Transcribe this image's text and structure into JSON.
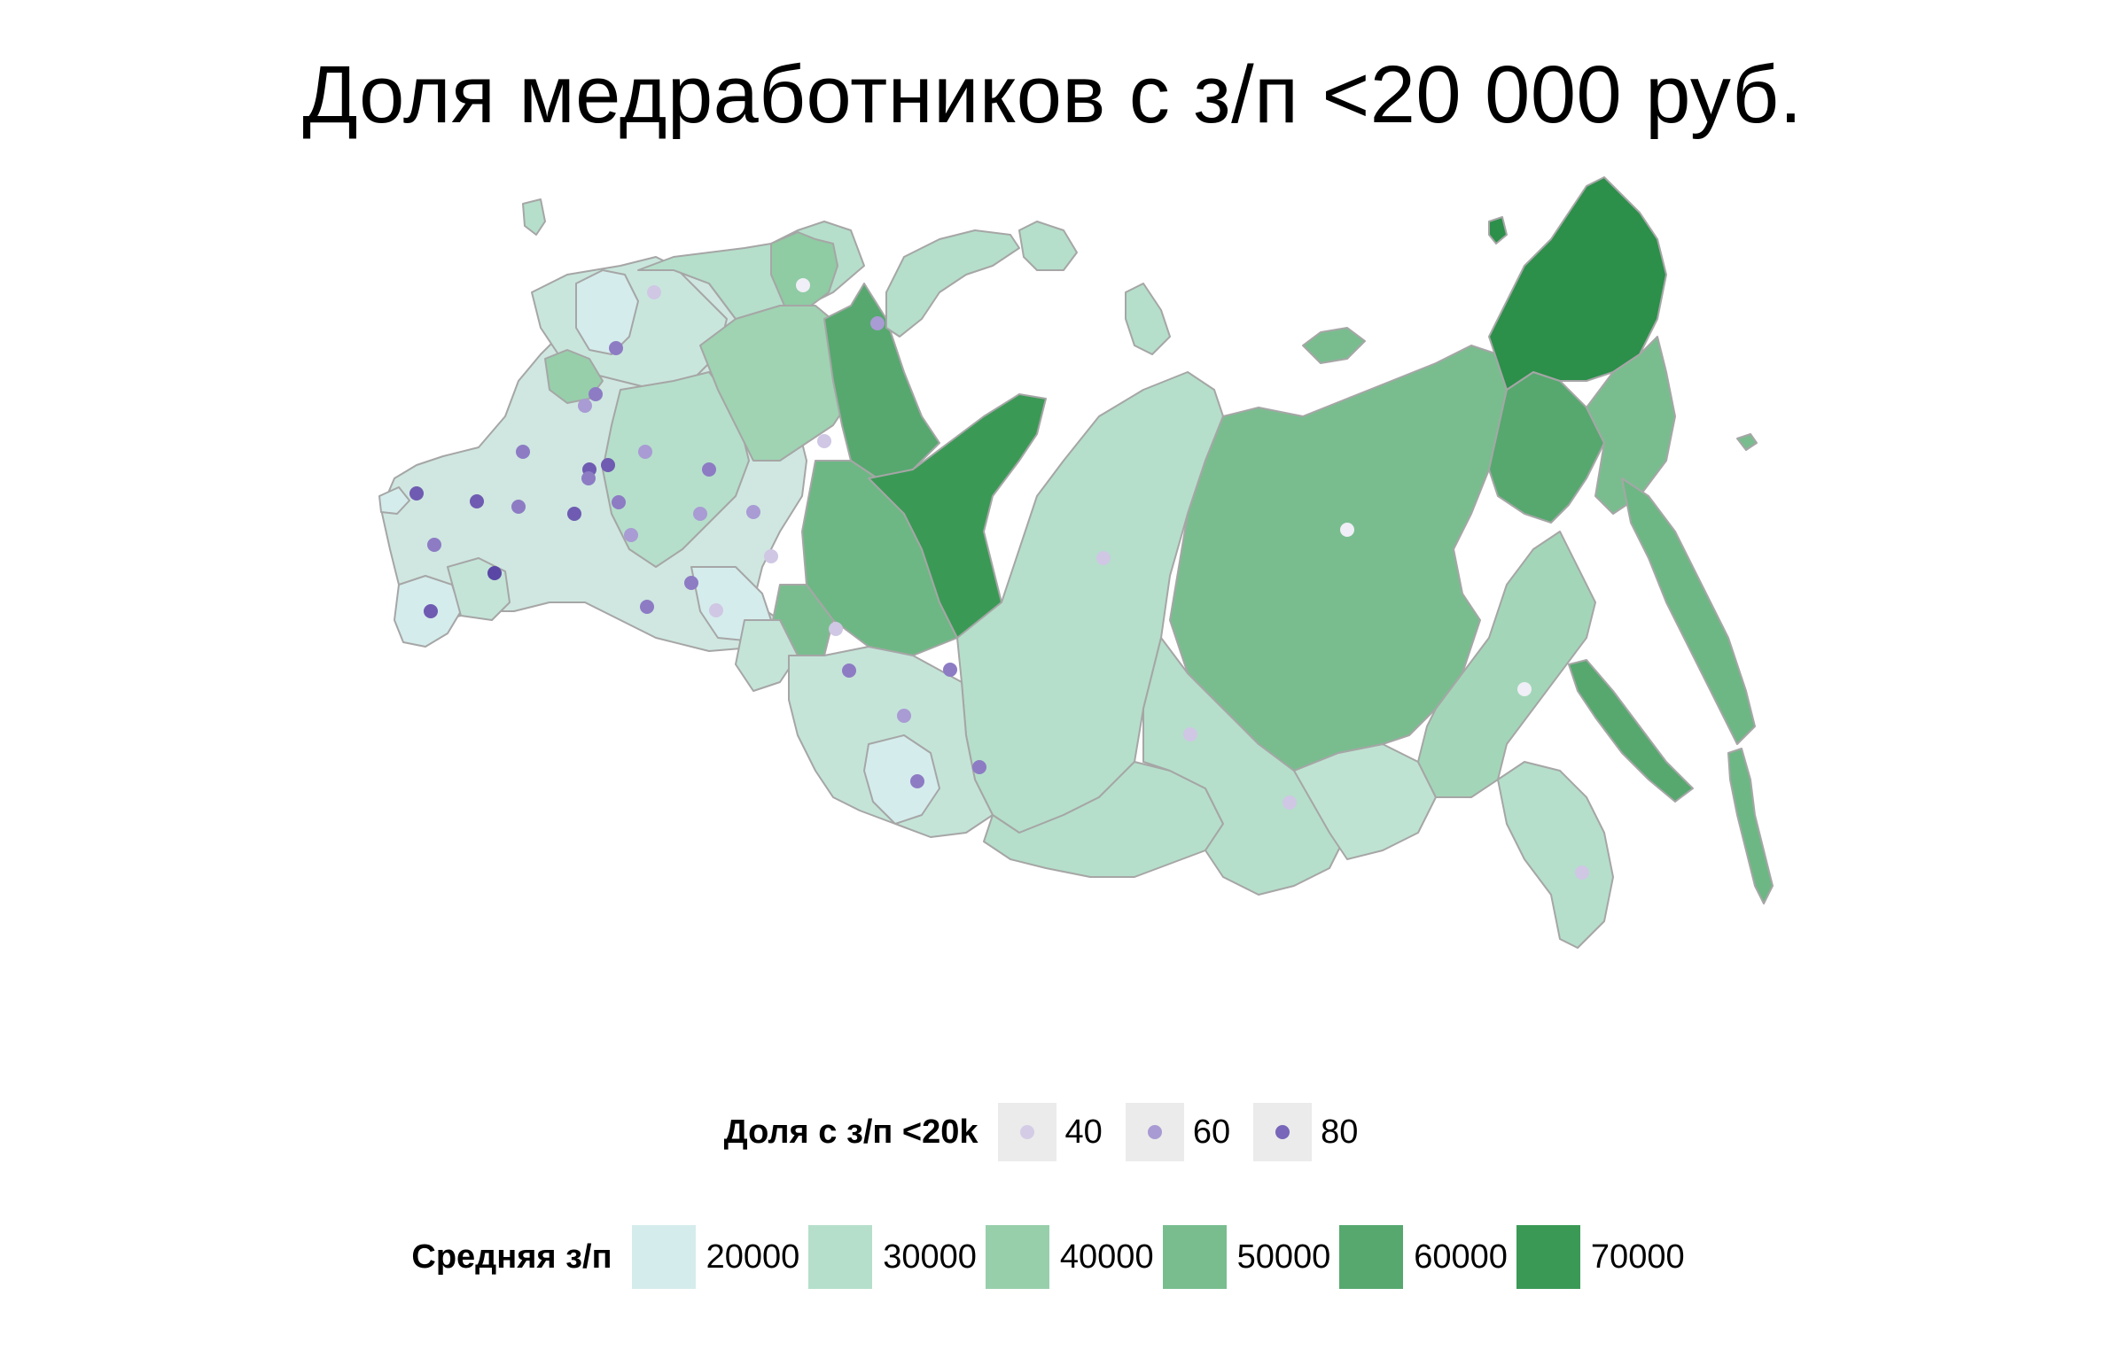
{
  "title": "Доля медработников с з/п <20 000 руб.",
  "colors": {
    "background": "#ffffff",
    "region_border": "#a6a6a6",
    "legend_key_bg": "#ebebeb",
    "salary_scale": [
      "#d5ecec",
      "#b5dfcb",
      "#97cfab",
      "#79bd8f",
      "#56a86f",
      "#3b9956",
      "#2c8f4a"
    ],
    "share_scale": [
      "#f0eef6",
      "#cfc7e4",
      "#a99bd3",
      "#8d7cc4",
      "#6f5bb2",
      "#5a47a5"
    ]
  },
  "legend_share": {
    "title": "Доля с з/п <20k",
    "items": [
      {
        "label": "40",
        "value": 40,
        "color": "#d4cce6"
      },
      {
        "label": "60",
        "value": 60,
        "color": "#a89ad2"
      },
      {
        "label": "80",
        "value": 80,
        "color": "#7766b9"
      }
    ]
  },
  "legend_salary": {
    "title": "Средняя з/п",
    "items": [
      {
        "label": "20000",
        "value": 20000,
        "color": "#d5ecec"
      },
      {
        "label": "30000",
        "value": 30000,
        "color": "#b5dfcb"
      },
      {
        "label": "40000",
        "value": 40000,
        "color": "#97cfab"
      },
      {
        "label": "50000",
        "value": 50000,
        "color": "#79bd8f"
      },
      {
        "label": "60000",
        "value": 60000,
        "color": "#56a86f"
      },
      {
        "label": "70000",
        "value": 70000,
        "color": "#3b9956"
      }
    ]
  }
}
